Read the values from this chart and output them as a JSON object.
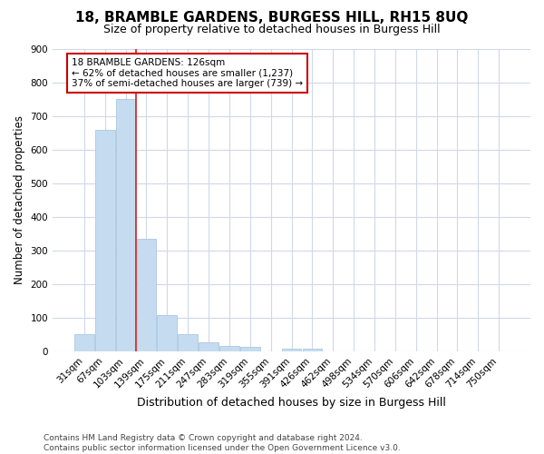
{
  "title": "18, BRAMBLE GARDENS, BURGESS HILL, RH15 8UQ",
  "subtitle": "Size of property relative to detached houses in Burgess Hill",
  "xlabel": "Distribution of detached houses by size in Burgess Hill",
  "ylabel": "Number of detached properties",
  "bar_labels": [
    "31sqm",
    "67sqm",
    "103sqm",
    "139sqm",
    "175sqm",
    "211sqm",
    "247sqm",
    "283sqm",
    "319sqm",
    "355sqm",
    "391sqm",
    "426sqm",
    "462sqm",
    "498sqm",
    "534sqm",
    "570sqm",
    "606sqm",
    "642sqm",
    "678sqm",
    "714sqm",
    "750sqm"
  ],
  "bar_values": [
    52,
    660,
    750,
    335,
    108,
    52,
    27,
    17,
    13,
    0,
    8,
    8,
    0,
    0,
    0,
    0,
    0,
    0,
    0,
    0,
    0
  ],
  "bar_color": "#c5dcf0",
  "bar_edge_color": "#a0c0e0",
  "property_line_x": 2.5,
  "annotation_text": "18 BRAMBLE GARDENS: 126sqm\n← 62% of detached houses are smaller (1,237)\n37% of semi-detached houses are larger (739) →",
  "annotation_box_color": "#ffffff",
  "annotation_box_edge_color": "#cc0000",
  "property_line_color": "#cc2222",
  "ylim": [
    0,
    900
  ],
  "yticks": [
    0,
    100,
    200,
    300,
    400,
    500,
    600,
    700,
    800,
    900
  ],
  "title_fontsize": 11,
  "subtitle_fontsize": 9,
  "xlabel_fontsize": 9,
  "ylabel_fontsize": 8.5,
  "tick_fontsize": 7.5,
  "annotation_fontsize": 7.5,
  "footer_text": "Contains HM Land Registry data © Crown copyright and database right 2024.\nContains public sector information licensed under the Open Government Licence v3.0.",
  "footer_fontsize": 6.5,
  "background_color": "#ffffff",
  "plot_bg_color": "#ffffff",
  "grid_color": "#d0d8e8"
}
